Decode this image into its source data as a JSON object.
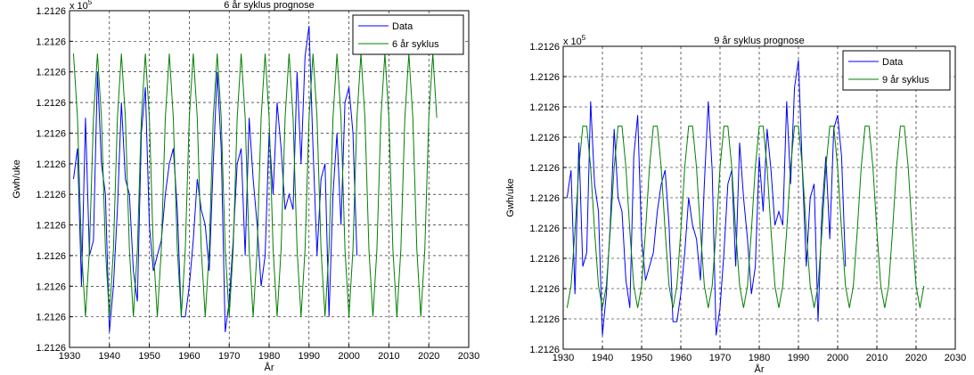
{
  "chart_data": [
    {
      "type": "line",
      "title": "6 år syklus prognose",
      "xlabel": "År",
      "ylabel": "Gwh/uke",
      "multiplier": "x 10",
      "multiplier_exp": "5",
      "xlim": [
        1930,
        2030
      ],
      "xticks": [
        1930,
        1940,
        1950,
        1960,
        1970,
        1980,
        1990,
        2000,
        2010,
        2020,
        2030
      ],
      "ylim": [
        121259.4,
        121260.5
      ],
      "yticks": [
        {
          "value": 121259.4,
          "label": "1.2126"
        },
        {
          "value": 121259.5,
          "label": "1.2126"
        },
        {
          "value": 121259.6,
          "label": "1.2126"
        },
        {
          "value": 121259.7,
          "label": "1.2126"
        },
        {
          "value": 121259.8,
          "label": "1.2126"
        },
        {
          "value": 121259.9,
          "label": "1.2126"
        },
        {
          "value": 121260.0,
          "label": "1.2126"
        },
        {
          "value": 121260.1,
          "label": "1.2126"
        },
        {
          "value": 121260.2,
          "label": "1.2126"
        },
        {
          "value": 121260.3,
          "label": "1.2126"
        },
        {
          "value": 121260.4,
          "label": "1.2126"
        },
        {
          "value": 121260.5,
          "label": "1.2126"
        }
      ],
      "grid": true,
      "legend": "upper right",
      "series": [
        {
          "name": "Data",
          "color": "#0000ff",
          "x": [
            1931,
            1932,
            1933,
            1934,
            1935,
            1936,
            1937,
            1938,
            1939,
            1940,
            1941,
            1942,
            1943,
            1944,
            1945,
            1946,
            1947,
            1948,
            1949,
            1950,
            1951,
            1952,
            1953,
            1954,
            1955,
            1956,
            1957,
            1958,
            1959,
            1960,
            1961,
            1962,
            1963,
            1964,
            1965,
            1966,
            1967,
            1968,
            1969,
            1970,
            1971,
            1972,
            1973,
            1974,
            1975,
            1976,
            1977,
            1978,
            1979,
            1980,
            1981,
            1982,
            1983,
            1984,
            1985,
            1986,
            1987,
            1988,
            1989,
            1990,
            1991,
            1992,
            1993,
            1994,
            1995,
            1996,
            1997,
            1998,
            1999,
            2000,
            2001,
            2002
          ],
          "values": [
            121259.95,
            121260.05,
            121259.6,
            121260.15,
            121259.7,
            121259.75,
            121260.3,
            121260.0,
            121259.9,
            121259.45,
            121259.6,
            121259.85,
            121260.2,
            121259.95,
            121259.9,
            121259.65,
            121259.55,
            121260.1,
            121260.25,
            121259.8,
            121259.65,
            121259.7,
            121259.75,
            121259.9,
            121260.0,
            121260.05,
            121259.85,
            121259.5,
            121259.5,
            121259.6,
            121259.75,
            121259.95,
            121259.85,
            121259.8,
            121259.65,
            121260.0,
            121260.3,
            121260.05,
            121259.45,
            121259.55,
            121259.75,
            121260.0,
            121260.05,
            121259.7,
            121260.15,
            121259.95,
            121259.8,
            121259.6,
            121259.7,
            121260.1,
            121259.9,
            121260.2,
            121260.05,
            121259.85,
            121259.9,
            121259.85,
            121260.3,
            121260.0,
            121260.35,
            121260.45,
            121260.05,
            121259.7,
            121259.95,
            121260.0,
            121259.5,
            121259.9,
            121260.1,
            121259.8,
            121260.2,
            121260.25,
            121260.1,
            121259.7
          ]
        },
        {
          "name": "6 år syklus",
          "color": "#008000",
          "x": [
            1931,
            1932,
            1933,
            1934,
            1935,
            1936,
            1937,
            1938,
            1939,
            1940,
            1941,
            1942,
            1943,
            1944,
            1945,
            1946,
            1947,
            1948,
            1949,
            1950,
            1951,
            1952,
            1953,
            1954,
            1955,
            1956,
            1957,
            1958,
            1959,
            1960,
            1961,
            1962,
            1963,
            1964,
            1965,
            1966,
            1967,
            1968,
            1969,
            1970,
            1971,
            1972,
            1973,
            1974,
            1975,
            1976,
            1977,
            1978,
            1979,
            1980,
            1981,
            1982,
            1983,
            1984,
            1985,
            1986,
            1987,
            1988,
            1989,
            1990,
            1991,
            1992,
            1993,
            1994,
            1995,
            1996,
            1997,
            1998,
            1999,
            2000,
            2001,
            2002,
            2003,
            2004,
            2005,
            2006,
            2007,
            2008,
            2009,
            2010,
            2011,
            2012,
            2013,
            2014,
            2015,
            2016,
            2017,
            2018,
            2019,
            2020,
            2021,
            2022
          ],
          "values": [
            121260.36,
            121260.15,
            121259.72,
            121259.5,
            121259.72,
            121260.15,
            121260.36,
            121260.15,
            121259.72,
            121259.5,
            121259.72,
            121260.15,
            121260.36,
            121260.15,
            121259.72,
            121259.5,
            121259.72,
            121260.15,
            121260.36,
            121260.15,
            121259.72,
            121259.5,
            121259.72,
            121260.15,
            121260.36,
            121260.15,
            121259.72,
            121259.5,
            121259.72,
            121260.15,
            121260.36,
            121260.15,
            121259.72,
            121259.5,
            121259.72,
            121260.15,
            121260.36,
            121260.15,
            121259.72,
            121259.5,
            121259.72,
            121260.15,
            121260.36,
            121260.15,
            121259.72,
            121259.5,
            121259.72,
            121260.15,
            121260.36,
            121260.15,
            121259.72,
            121259.5,
            121259.72,
            121260.15,
            121260.36,
            121260.15,
            121259.72,
            121259.5,
            121259.72,
            121260.15,
            121260.36,
            121260.15,
            121259.72,
            121259.5,
            121259.72,
            121260.15,
            121260.36,
            121260.15,
            121259.72,
            121259.5,
            121259.72,
            121260.15,
            121260.36,
            121260.15,
            121259.72,
            121259.5,
            121259.72,
            121260.15,
            121260.36,
            121260.15,
            121259.72,
            121259.5,
            121259.72,
            121260.15,
            121260.36,
            121260.15,
            121259.72,
            121259.5,
            121259.72,
            121260.15,
            121260.36,
            121260.15
          ]
        }
      ]
    },
    {
      "type": "line",
      "title": "9 år syklus prognose",
      "xlabel": "År",
      "ylabel": "Gwh/uke",
      "multiplier": "x 10",
      "multiplier_exp": "5",
      "xlim": [
        1930,
        2030
      ],
      "xticks": [
        1930,
        1940,
        1950,
        1960,
        1970,
        1980,
        1990,
        2000,
        2010,
        2020,
        2030
      ],
      "ylim": [
        121259.4,
        121260.5
      ],
      "yticks": [
        {
          "value": 121259.4,
          "label": "1.2126"
        },
        {
          "value": 121259.51,
          "label": "1.2126"
        },
        {
          "value": 121259.62,
          "label": "1.2126"
        },
        {
          "value": 121259.73,
          "label": "1.2126"
        },
        {
          "value": 121259.84,
          "label": "1.2126"
        },
        {
          "value": 121259.95,
          "label": "1.2126"
        },
        {
          "value": 121260.06,
          "label": "1.2126"
        },
        {
          "value": 121260.17,
          "label": "1.2126"
        },
        {
          "value": 121260.28,
          "label": "1.2126"
        },
        {
          "value": 121260.39,
          "label": "1.2126"
        },
        {
          "value": 121260.5,
          "label": "1.2126"
        }
      ],
      "grid": true,
      "legend": "upper right",
      "series": [
        {
          "name": "Data",
          "color": "#0000ff",
          "x": [
            1931,
            1932,
            1933,
            1934,
            1935,
            1936,
            1937,
            1938,
            1939,
            1940,
            1941,
            1942,
            1943,
            1944,
            1945,
            1946,
            1947,
            1948,
            1949,
            1950,
            1951,
            1952,
            1953,
            1954,
            1955,
            1956,
            1957,
            1958,
            1959,
            1960,
            1961,
            1962,
            1963,
            1964,
            1965,
            1966,
            1967,
            1968,
            1969,
            1970,
            1971,
            1972,
            1973,
            1974,
            1975,
            1976,
            1977,
            1978,
            1979,
            1980,
            1981,
            1982,
            1983,
            1984,
            1985,
            1986,
            1987,
            1988,
            1989,
            1990,
            1991,
            1992,
            1993,
            1994,
            1995,
            1996,
            1997,
            1998,
            1999,
            2000,
            2001,
            2002
          ],
          "values": [
            121259.95,
            121260.05,
            121259.6,
            121260.15,
            121259.7,
            121259.75,
            121260.3,
            121260.0,
            121259.9,
            121259.45,
            121259.6,
            121259.85,
            121260.2,
            121259.95,
            121259.9,
            121259.65,
            121259.55,
            121260.1,
            121260.25,
            121259.8,
            121259.65,
            121259.7,
            121259.75,
            121259.9,
            121260.0,
            121260.05,
            121259.85,
            121259.5,
            121259.5,
            121259.6,
            121259.75,
            121259.95,
            121259.85,
            121259.8,
            121259.65,
            121260.0,
            121260.3,
            121260.05,
            121259.45,
            121259.55,
            121259.75,
            121260.0,
            121260.05,
            121259.7,
            121260.15,
            121259.95,
            121259.8,
            121259.6,
            121259.7,
            121260.1,
            121259.9,
            121260.2,
            121260.05,
            121259.85,
            121259.9,
            121259.85,
            121260.3,
            121260.0,
            121260.35,
            121260.45,
            121260.05,
            121259.7,
            121259.95,
            121260.0,
            121259.5,
            121259.9,
            121260.1,
            121259.8,
            121260.2,
            121260.25,
            121260.1,
            121259.7
          ]
        },
        {
          "name": "9 år syklus",
          "color": "#008000",
          "x": [
            1931,
            1932,
            1933,
            1934,
            1935,
            1936,
            1937,
            1938,
            1939,
            1940,
            1941,
            1942,
            1943,
            1944,
            1945,
            1946,
            1947,
            1948,
            1949,
            1950,
            1951,
            1952,
            1953,
            1954,
            1955,
            1956,
            1957,
            1958,
            1959,
            1960,
            1961,
            1962,
            1963,
            1964,
            1965,
            1966,
            1967,
            1968,
            1969,
            1970,
            1971,
            1972,
            1973,
            1974,
            1975,
            1976,
            1977,
            1978,
            1979,
            1980,
            1981,
            1982,
            1983,
            1984,
            1985,
            1986,
            1987,
            1988,
            1989,
            1990,
            1991,
            1992,
            1993,
            1994,
            1995,
            1996,
            1997,
            1998,
            1999,
            2000,
            2001,
            2002,
            2003,
            2004,
            2005,
            2006,
            2007,
            2008,
            2009,
            2010,
            2011,
            2012,
            2013,
            2014,
            2015,
            2016,
            2017,
            2018,
            2019,
            2020,
            2021,
            2022
          ],
          "values": [
            121259.55,
            121259.63,
            121259.83,
            121260.06,
            121260.21,
            121260.21,
            121260.06,
            121259.83,
            121259.63,
            121259.55,
            121259.63,
            121259.83,
            121260.06,
            121260.21,
            121260.21,
            121260.06,
            121259.83,
            121259.63,
            121259.55,
            121259.63,
            121259.83,
            121260.06,
            121260.21,
            121260.21,
            121260.06,
            121259.83,
            121259.63,
            121259.55,
            121259.63,
            121259.83,
            121260.06,
            121260.21,
            121260.21,
            121260.06,
            121259.83,
            121259.63,
            121259.55,
            121259.63,
            121259.83,
            121260.06,
            121260.21,
            121260.21,
            121260.06,
            121259.83,
            121259.63,
            121259.55,
            121259.63,
            121259.83,
            121260.06,
            121260.21,
            121260.21,
            121260.06,
            121259.83,
            121259.63,
            121259.55,
            121259.63,
            121259.83,
            121260.06,
            121260.21,
            121260.21,
            121260.06,
            121259.83,
            121259.63,
            121259.55,
            121259.63,
            121259.83,
            121260.06,
            121260.21,
            121260.21,
            121260.06,
            121259.83,
            121259.63,
            121259.55,
            121259.63,
            121259.83,
            121260.06,
            121260.21,
            121260.21,
            121260.06,
            121259.83,
            121259.63,
            121259.55,
            121259.63,
            121259.83,
            121260.06,
            121260.21,
            121260.21,
            121260.06,
            121259.83,
            121259.63,
            121259.55,
            121259.63
          ]
        }
      ]
    }
  ]
}
